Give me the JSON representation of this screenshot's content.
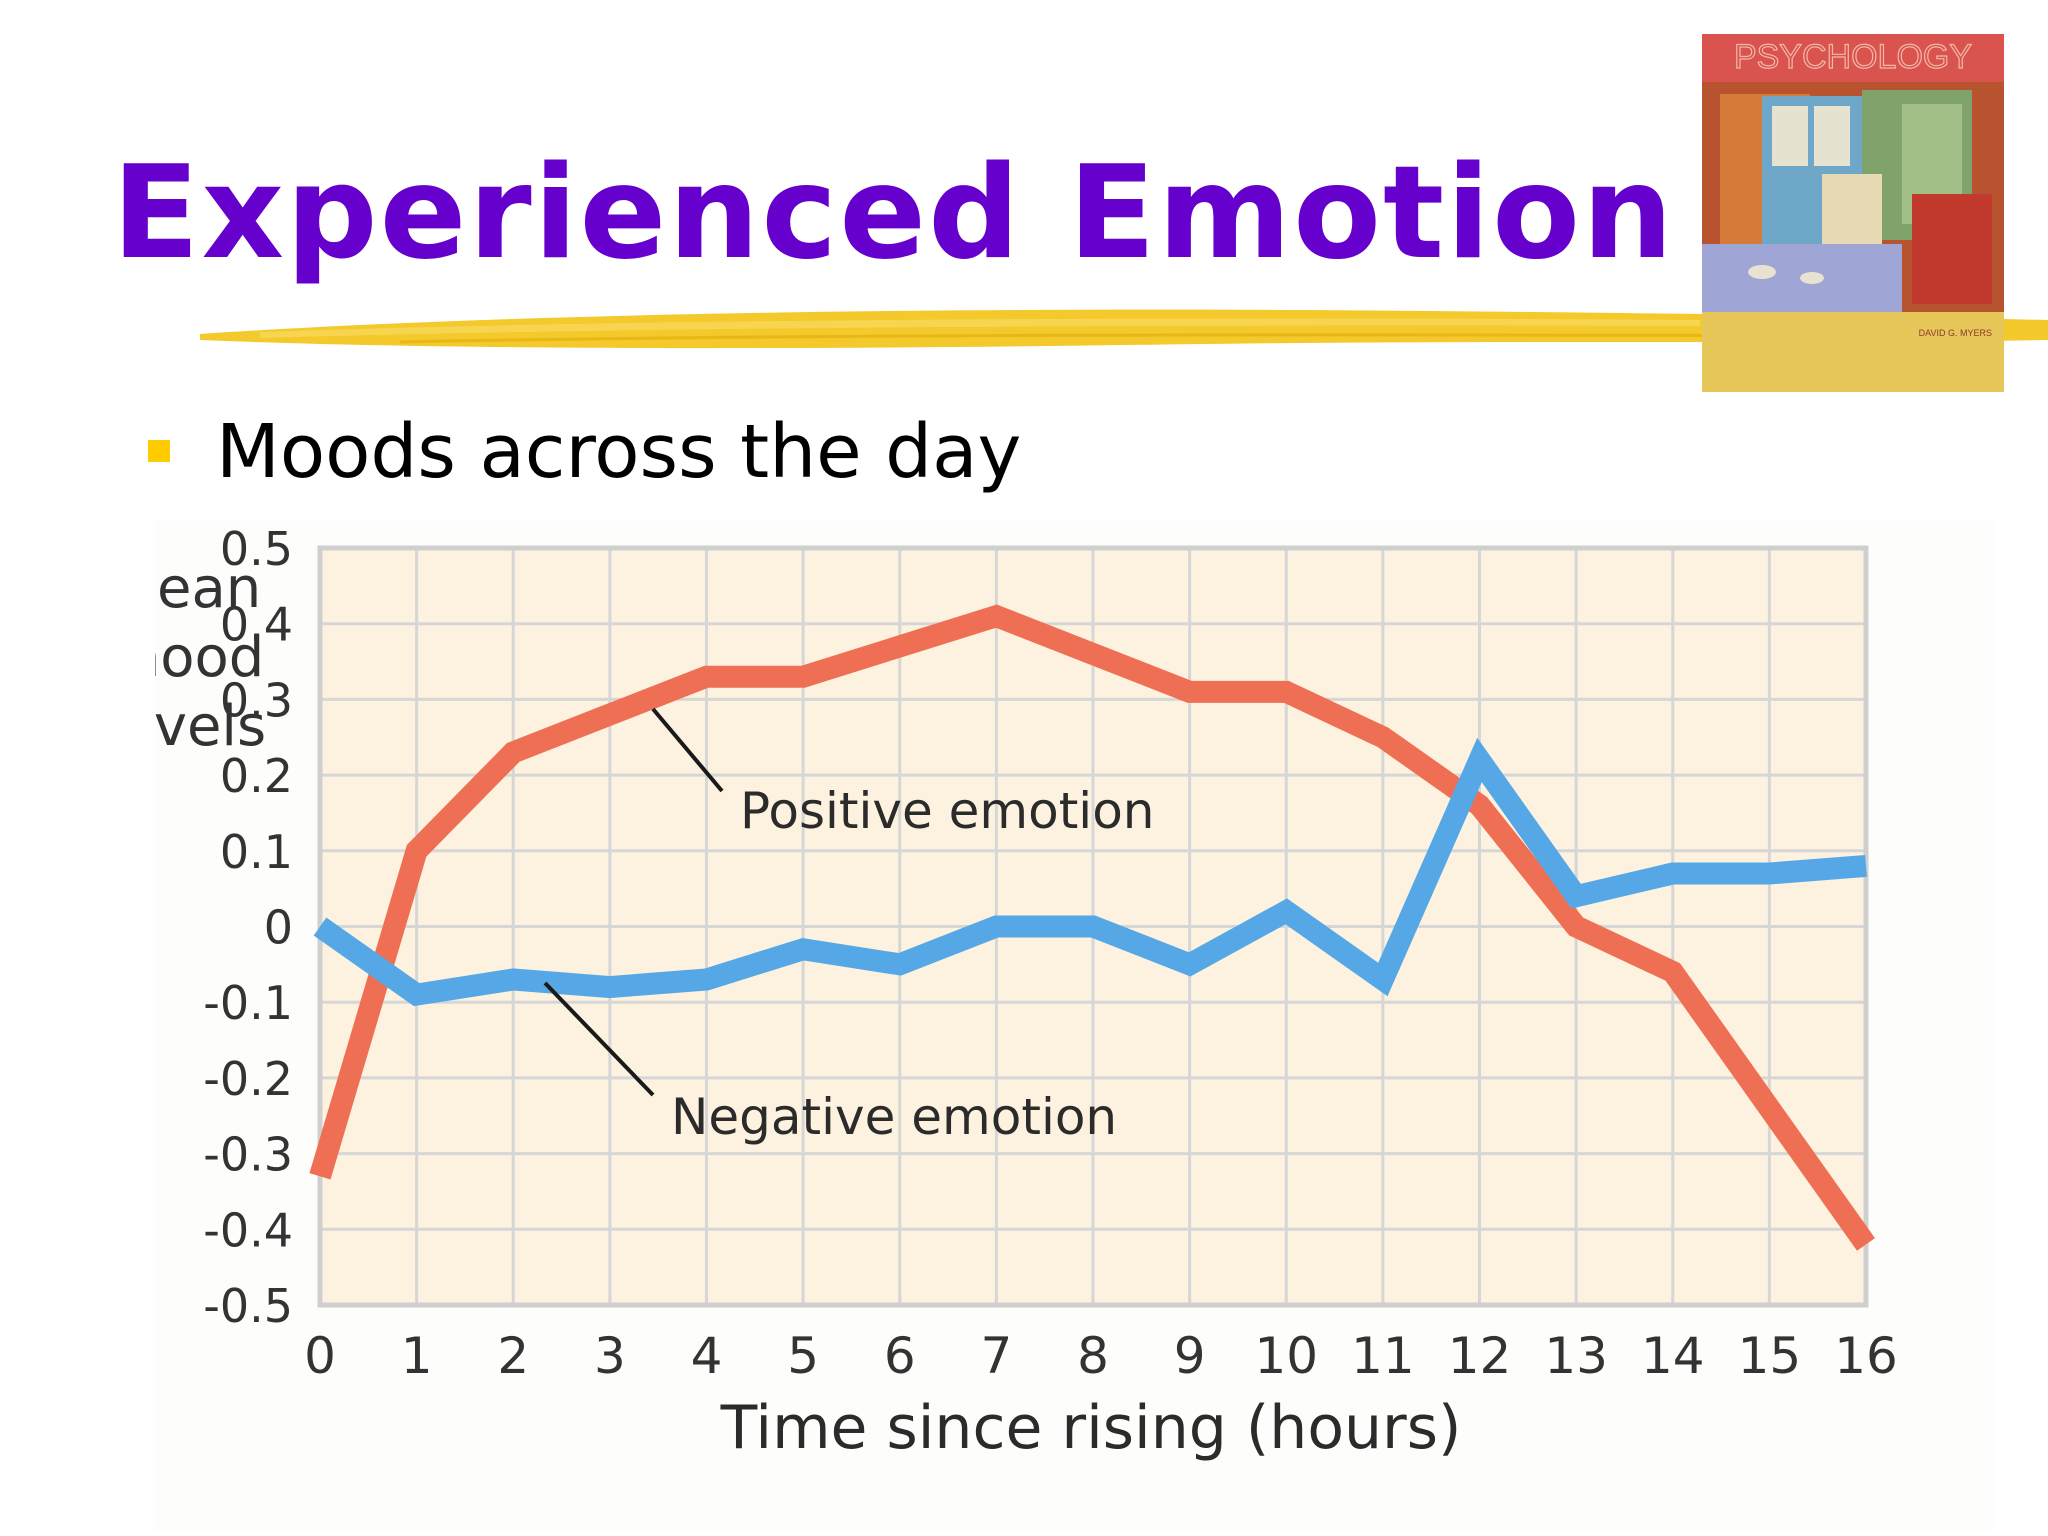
{
  "slide": {
    "title": "Experienced Emotion",
    "bullet": "Moods across the day",
    "book_cover_title": "PSYCHOLOGY",
    "book_cover_author": "DAVID G. MYERS"
  },
  "colors": {
    "title": "#6600cc",
    "bullet": "#ffcc00",
    "brush": "#f2c314",
    "plot_bg": "#fcf2df",
    "grid": "#d6d6d6",
    "positive_line": "#ef6f54",
    "negative_line": "#55a8e5"
  },
  "chart_data": {
    "type": "line",
    "xlabel": "Time since rising (hours)",
    "ylabel": "Mean mood levels",
    "ylabel_lines": [
      "Mean",
      "mood",
      "levels"
    ],
    "xlim": [
      0,
      16
    ],
    "ylim": [
      -0.5,
      0.5
    ],
    "x_ticks": [
      "0",
      "1",
      "2",
      "3",
      "4",
      "5",
      "6",
      "7",
      "8",
      "9",
      "10",
      "11",
      "12",
      "13",
      "14",
      "15",
      "16"
    ],
    "y_ticks": [
      "0.5",
      "0.4",
      "0.3",
      "0.2",
      "0.1",
      "0",
      "-0.1",
      "-0.2",
      "-0.3",
      "-0.4",
      "-0.5"
    ],
    "grid": true,
    "x": [
      0,
      1,
      2,
      3,
      4,
      5,
      6,
      7,
      8,
      9,
      10,
      11,
      12,
      13,
      14,
      15,
      16
    ],
    "series": [
      {
        "name": "Positive emotion",
        "values": [
          -0.33,
          0.1,
          0.23,
          0.28,
          0.33,
          0.33,
          0.37,
          0.41,
          0.36,
          0.31,
          0.31,
          0.25,
          0.16,
          0.0,
          -0.06,
          -0.24,
          -0.42
        ]
      },
      {
        "name": "Negative emotion",
        "values": [
          0.0,
          -0.09,
          -0.07,
          -0.08,
          -0.07,
          -0.03,
          -0.05,
          0.0,
          0.0,
          -0.05,
          0.02,
          -0.07,
          0.22,
          0.04,
          0.07,
          0.07,
          0.08
        ]
      }
    ]
  }
}
